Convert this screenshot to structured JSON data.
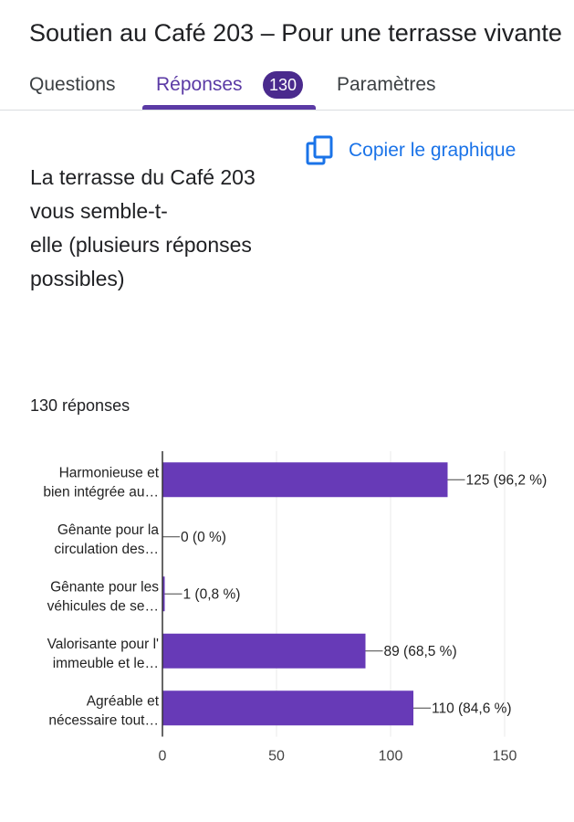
{
  "form": {
    "title": "Soutien au Café 203 – Pour une terrasse vivante"
  },
  "tabs": {
    "questions": "Questions",
    "responses": "Réponses",
    "responses_count": "130",
    "settings": "Paramètres"
  },
  "copy_chart": {
    "label": "Copier le graphique",
    "icon": "copy-icon"
  },
  "question": {
    "text": "La terrasse du Café 203\nvous semble-t-\nelle (plusieurs réponses\npossibles)",
    "response_count": "130 réponses"
  },
  "colors": {
    "bar": "#673ab7",
    "accent": "#5b3aa5",
    "link": "#1a73e8"
  },
  "chart_data": {
    "type": "bar",
    "orientation": "horizontal",
    "categories": [
      [
        "Harmonieuse et",
        "bien intégrée au…"
      ],
      [
        "Gênante pour la",
        "circulation des…"
      ],
      [
        "Gênante pour les",
        "véhicules de se…"
      ],
      [
        "Valorisante pour l'",
        "immeuble et le…"
      ],
      [
        "Agréable et",
        "nécessaire tout…"
      ]
    ],
    "values": [
      125,
      0,
      1,
      89,
      110
    ],
    "value_labels": [
      "125 (96,2 %)",
      "0 (0 %)",
      "1 (0,8 %)",
      "89 (68,5 %)",
      "110 (84,6 %)"
    ],
    "xlim": [
      0,
      150
    ],
    "xticks": [
      0,
      50,
      100,
      150
    ],
    "grid": true
  }
}
